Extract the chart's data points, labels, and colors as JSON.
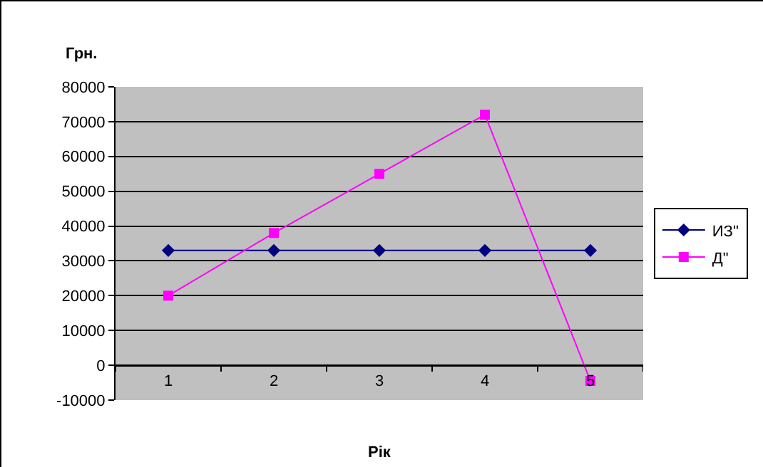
{
  "chart_data": {
    "type": "line",
    "xlabel": "Рік",
    "ylabel": "Грн.",
    "categories": [
      "1",
      "2",
      "3",
      "4",
      "5"
    ],
    "series": [
      {
        "name": "ИЗ\"",
        "color": "#000080",
        "marker": "diamond",
        "values": [
          33000,
          33000,
          33000,
          33000,
          33000
        ]
      },
      {
        "name": "Д\"",
        "color": "#ff00ff",
        "marker": "square",
        "values": [
          20000,
          38000,
          55000,
          72000,
          -4500
        ]
      }
    ],
    "ylim": [
      -10000,
      80000
    ],
    "yticks": [
      -10000,
      0,
      10000,
      20000,
      30000,
      40000,
      50000,
      60000,
      70000,
      80000
    ],
    "grid": "y",
    "legend": "right",
    "line_style": "solid"
  }
}
